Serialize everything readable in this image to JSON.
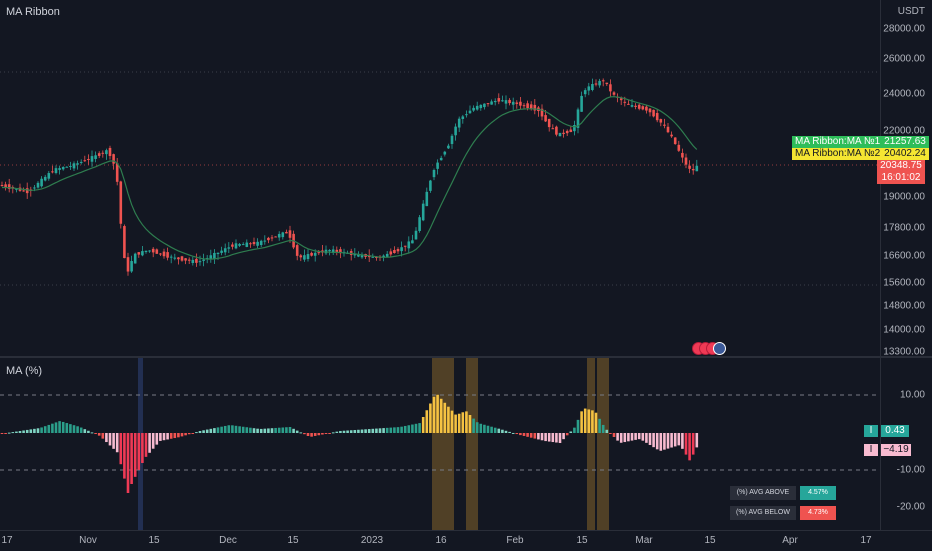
{
  "chart_title": "MA Ribbon",
  "indicator_title": "MA (%)",
  "unit": "USDT",
  "price_ticks": [
    "28000.00",
    "26000.00",
    "24000.00",
    "22000.00",
    "19000.00",
    "17800.00",
    "16600.00",
    "15600.00",
    "14800.00",
    "14000.00",
    "13300.00"
  ],
  "ind_ticks": [
    "10.00",
    "-10.00",
    "-20.00"
  ],
  "time_ticks": [
    "17",
    "Nov",
    "15",
    "Dec",
    "15",
    "2023",
    "16",
    "Feb",
    "15",
    "Mar",
    "15",
    "Apr",
    "17"
  ],
  "labels": {
    "ma1_name": "MA Ribbon:MA №1",
    "ma1_value": "21257.63",
    "ma2_name": "MA Ribbon:MA №2",
    "ma2_value": "20402.24",
    "last_price": "20348.75",
    "countdown": "16:01:02"
  },
  "ind_labels": {
    "pos_value": "0.43",
    "neg_value": "−4.19",
    "pos_icon": "I",
    "neg_icon": "I"
  },
  "stats": {
    "above_label": "(%) AVG ABOVE",
    "above_value": "4.57%",
    "below_label": "(%) AVG BELOW",
    "below_value": "4.73%"
  },
  "colors": {
    "up": "#26a69a",
    "down": "#ef5350",
    "ma": "#2e7d4f",
    "yellow": "#f5c242",
    "pink": "#f8bbd0",
    "teal": "#2b9f8b"
  }
}
